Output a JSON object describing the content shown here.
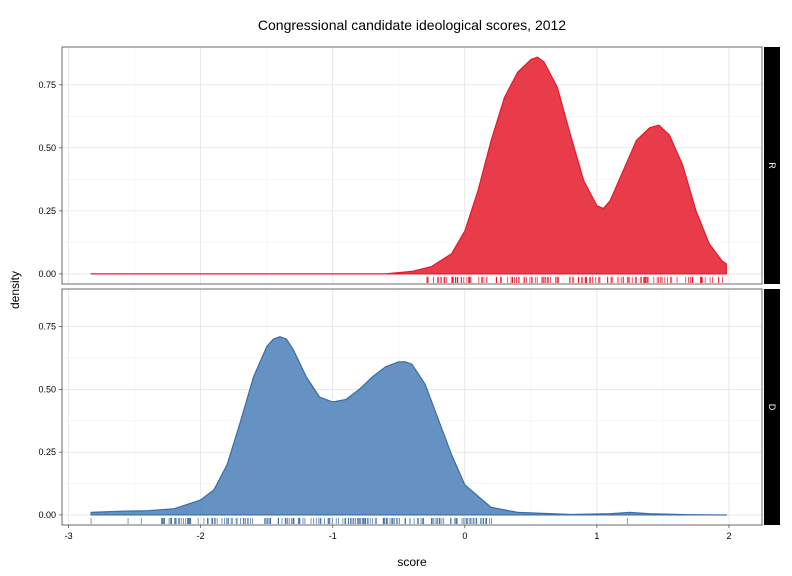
{
  "chart_data": {
    "type": "area",
    "title": "Congressional candidate ideological scores, 2012",
    "xlabel": "score",
    "ylabel": "density",
    "xlim": [
      -3.05,
      2.25
    ],
    "x_ticks": [
      -3,
      -2,
      -1,
      0,
      1,
      2
    ],
    "x_tick_labels": [
      "-3",
      "-2",
      "-1",
      "0",
      "1",
      "2"
    ],
    "y_ticks": [
      0,
      0.25,
      0.5,
      0.75
    ],
    "y_tick_labels": [
      "0.00",
      "0.25",
      "0.50",
      "0.75"
    ],
    "grid": true,
    "facets": [
      {
        "strip_label": "R",
        "color": "#e41a2b",
        "fill": "#e41a2b",
        "ylim": [
          -0.04,
          0.9
        ],
        "x": [
          -2.83,
          -1.0,
          -0.6,
          -0.4,
          -0.25,
          -0.1,
          0.0,
          0.1,
          0.2,
          0.3,
          0.4,
          0.5,
          0.55,
          0.6,
          0.7,
          0.8,
          0.9,
          1.0,
          1.05,
          1.1,
          1.2,
          1.3,
          1.4,
          1.47,
          1.55,
          1.65,
          1.75,
          1.85,
          1.95,
          1.98
        ],
        "density": [
          0.0,
          0.0,
          0.0,
          0.01,
          0.03,
          0.08,
          0.17,
          0.33,
          0.53,
          0.7,
          0.8,
          0.85,
          0.86,
          0.84,
          0.74,
          0.55,
          0.37,
          0.27,
          0.26,
          0.29,
          0.41,
          0.53,
          0.58,
          0.59,
          0.55,
          0.43,
          0.25,
          0.12,
          0.05,
          0.04
        ],
        "rug_count": 150,
        "rug_range": [
          -0.3,
          1.98
        ]
      },
      {
        "strip_label": "D",
        "color": "#3a6ea5",
        "fill": "#4a7fb9",
        "ylim": [
          -0.04,
          0.9
        ],
        "x": [
          -2.83,
          -2.6,
          -2.4,
          -2.2,
          -2.0,
          -1.9,
          -1.8,
          -1.7,
          -1.6,
          -1.5,
          -1.45,
          -1.4,
          -1.35,
          -1.3,
          -1.2,
          -1.1,
          -1.0,
          -0.9,
          -0.8,
          -0.7,
          -0.6,
          -0.5,
          -0.45,
          -0.4,
          -0.3,
          -0.2,
          -0.1,
          0.0,
          0.2,
          0.4,
          0.8,
          1.1,
          1.25,
          1.4,
          1.7,
          1.98
        ],
        "density": [
          0.01,
          0.015,
          0.017,
          0.025,
          0.06,
          0.1,
          0.2,
          0.37,
          0.55,
          0.67,
          0.7,
          0.71,
          0.7,
          0.66,
          0.55,
          0.47,
          0.45,
          0.46,
          0.5,
          0.55,
          0.59,
          0.61,
          0.61,
          0.6,
          0.52,
          0.38,
          0.24,
          0.12,
          0.03,
          0.01,
          0.002,
          0.005,
          0.01,
          0.005,
          0.001,
          0.0
        ],
        "rug_count": 200,
        "rug_range": [
          -2.3,
          0.25
        ],
        "rug_extra": [
          -2.83,
          -2.55,
          -2.45,
          1.23
        ]
      }
    ]
  }
}
